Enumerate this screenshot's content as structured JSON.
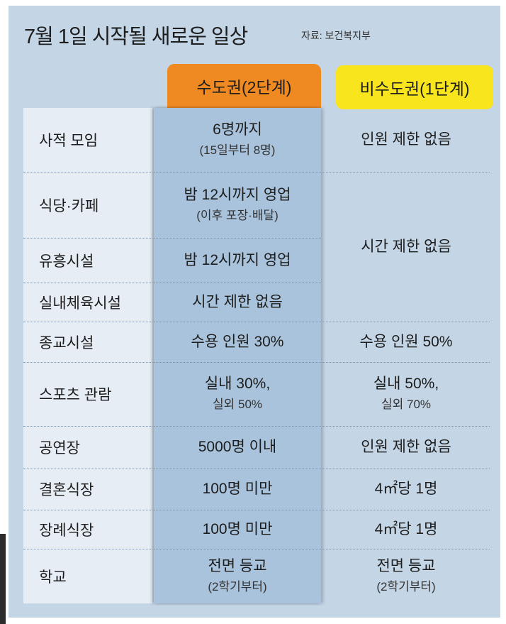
{
  "header": {
    "title": "7월 1일 시작될 새로운 일상",
    "source": "자료: 보건복지부"
  },
  "table": {
    "columns": [
      "수도권(2단계)",
      "비수도권(1단계)"
    ],
    "rows": [
      {
        "label": "사적 모임",
        "capital": [
          "6명까지",
          "(15일부터 8명)"
        ],
        "non_capital": [
          "인원 제한 없음"
        ]
      },
      {
        "label": "식당·카페",
        "capital": [
          "밤 12시까지 영업",
          "(이후 포장·배달)"
        ],
        "non_capital": [
          "시간 제한 없음"
        ]
      },
      {
        "label": "유흥시설",
        "capital": [
          "밤 12시까지 영업"
        ]
      },
      {
        "label": "실내체육시설",
        "capital": [
          "시간 제한 없음"
        ]
      },
      {
        "label": "종교시설",
        "capital": [
          "수용 인원 30%"
        ],
        "non_capital": [
          "수용 인원 50%"
        ]
      },
      {
        "label": "스포츠 관람",
        "capital": [
          "실내 30%,",
          "실외 50%"
        ],
        "non_capital": [
          "실내 50%,",
          "실외 70%"
        ]
      },
      {
        "label": "공연장",
        "capital": [
          "5000명 이내"
        ],
        "non_capital": [
          "인원 제한 없음"
        ]
      },
      {
        "label": "결혼식장",
        "capital": [
          "100명 미만"
        ],
        "non_capital": [
          "4㎡당 1명"
        ]
      },
      {
        "label": "장례식장",
        "capital": [
          "100명 미만"
        ],
        "non_capital": [
          "4㎡당 1명"
        ]
      },
      {
        "label": "학교",
        "capital": [
          "전면 등교",
          "(2학기부터)"
        ],
        "non_capital": [
          "전면 등교",
          "(2학기부터)"
        ]
      }
    ]
  }
}
